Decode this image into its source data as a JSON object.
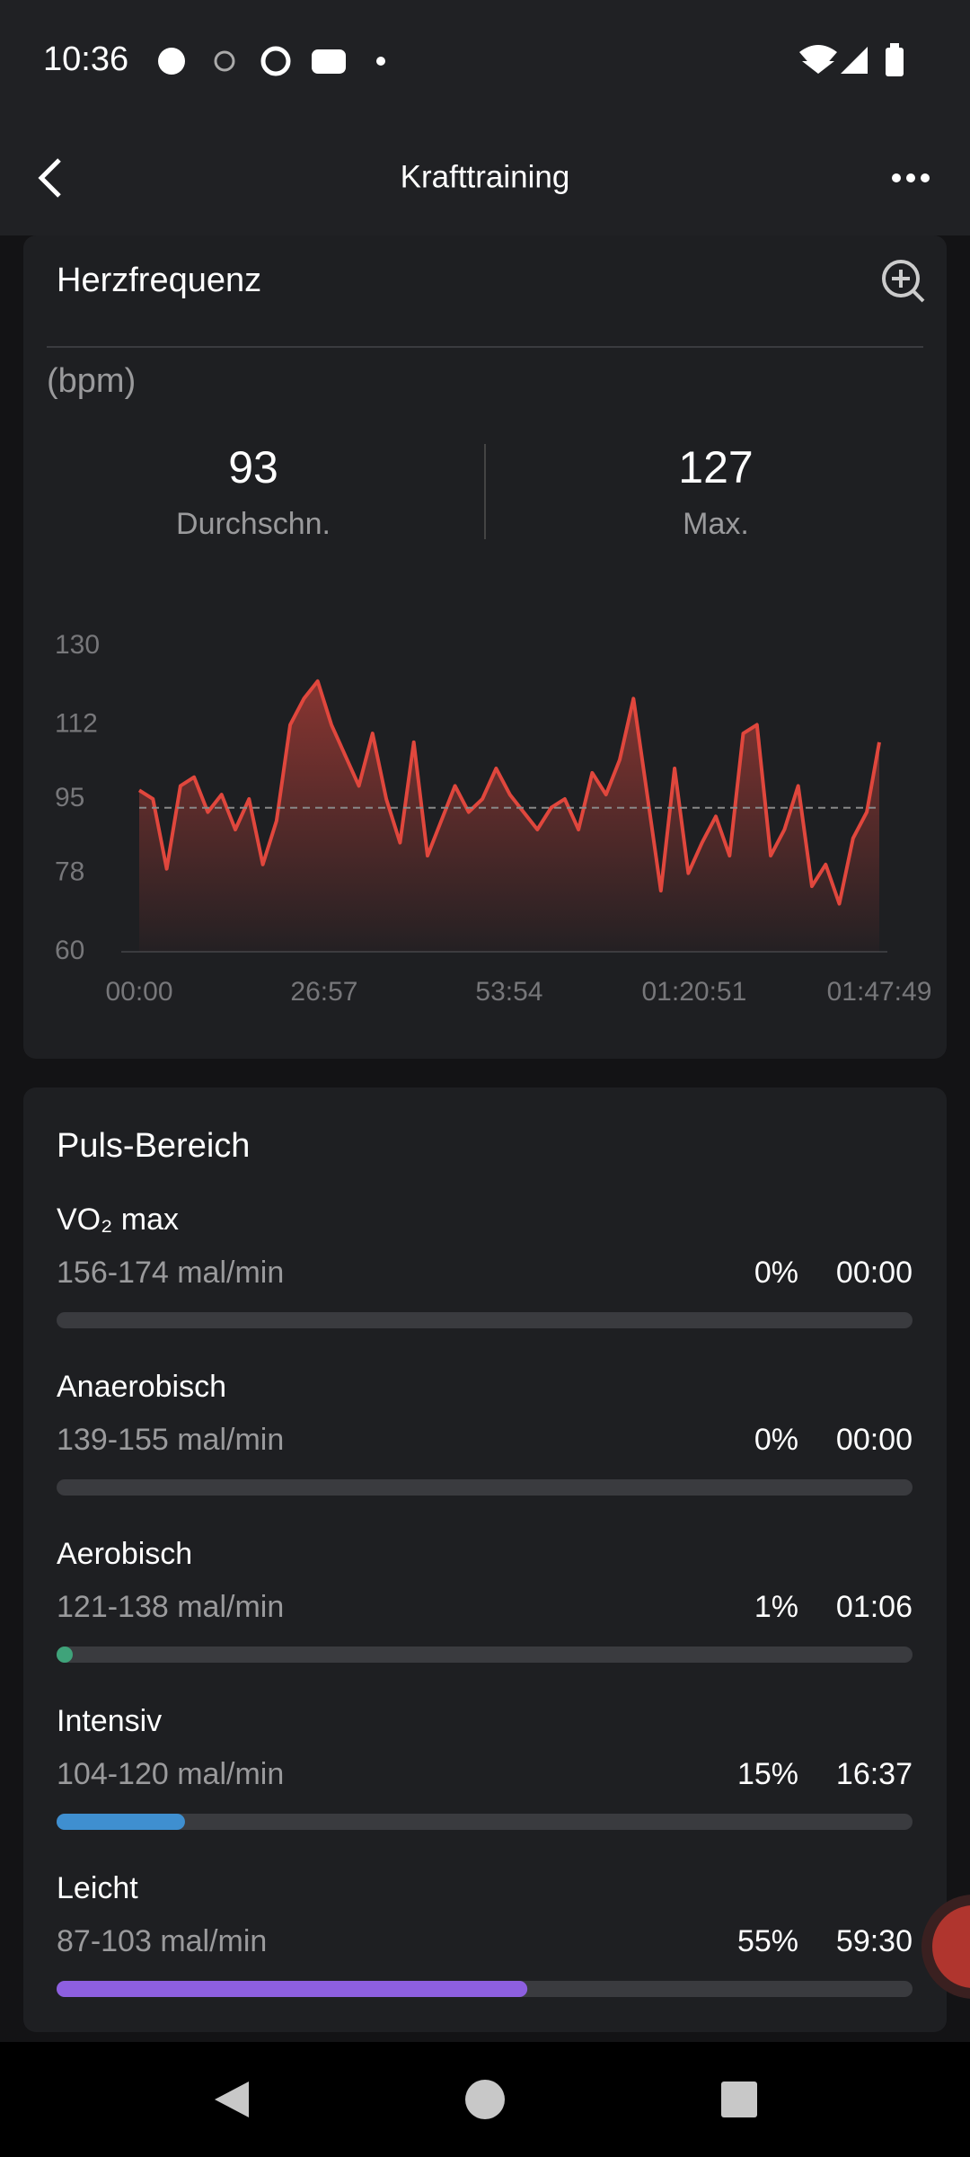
{
  "status_bar": {
    "time": "10:36"
  },
  "header": {
    "title": "Krafttraining"
  },
  "heart_rate": {
    "title": "Herzfrequenz",
    "unit": "(bpm)",
    "average": 93,
    "average_label": "Durchschn.",
    "max": 127,
    "max_label": "Max."
  },
  "chart_data": {
    "type": "line",
    "x": [
      0,
      120,
      240,
      360,
      480,
      600,
      720,
      840,
      960,
      1080,
      1200,
      1320,
      1440,
      1560,
      1680,
      1800,
      1920,
      2040,
      2160,
      2280,
      2400,
      2520,
      2640,
      2760,
      2880,
      3000,
      3120,
      3240,
      3360,
      3480,
      3600,
      3720,
      3840,
      3960,
      4080,
      4200,
      4320,
      4440,
      4560,
      4680,
      4800,
      4920,
      5040,
      5160,
      5280,
      5400,
      5520,
      5640,
      5760,
      5880,
      6000,
      6120,
      6240,
      6360,
      6469
    ],
    "series": [
      {
        "color": "#e0473d",
        "values": [
          97,
          95,
          79,
          98,
          100,
          92,
          96,
          88,
          95,
          80,
          90,
          112,
          118,
          122,
          112,
          105,
          98,
          110,
          95,
          85,
          108,
          82,
          90,
          98,
          92,
          95,
          102,
          96,
          92,
          88,
          93,
          95,
          88,
          101,
          96,
          104,
          118,
          96,
          74,
          102,
          78,
          85,
          91,
          82,
          110,
          112,
          82,
          88,
          98,
          75,
          80,
          71,
          86,
          92,
          108
        ]
      }
    ],
    "xlim": [
      0,
      6469
    ],
    "xticks": [
      {
        "value": 0,
        "label": "00:00"
      },
      {
        "value": 1617,
        "label": "26:57"
      },
      {
        "value": 3234,
        "label": "53:54"
      },
      {
        "value": 4851,
        "label": "01:20:51"
      },
      {
        "value": 6469,
        "label": "01:47:49"
      }
    ],
    "ylim": [
      60,
      130
    ],
    "yticks": [
      60,
      78,
      95,
      112,
      130
    ],
    "grid": false
  },
  "zones": {
    "title": "Puls-Bereich",
    "items": [
      {
        "name": "VO₂ max",
        "range": "156-174 mal/min",
        "percent": 0,
        "percent_label": "0%",
        "time": "00:00",
        "color": "#3fa37a"
      },
      {
        "name": "Anaerobisch",
        "range": "139-155 mal/min",
        "percent": 0,
        "percent_label": "0%",
        "time": "00:00",
        "color": "#3fa37a"
      },
      {
        "name": "Aerobisch",
        "range": "121-138 mal/min",
        "percent": 1,
        "percent_label": "1%",
        "time": "01:06",
        "color": "#3fa37a"
      },
      {
        "name": "Intensiv",
        "range": "104-120 mal/min",
        "percent": 15,
        "percent_label": "15%",
        "time": "16:37",
        "color": "#3f8fd0"
      },
      {
        "name": "Leicht",
        "range": "87-103 mal/min",
        "percent": 55,
        "percent_label": "55%",
        "time": "59:30",
        "color": "#8d5fe0"
      }
    ]
  }
}
